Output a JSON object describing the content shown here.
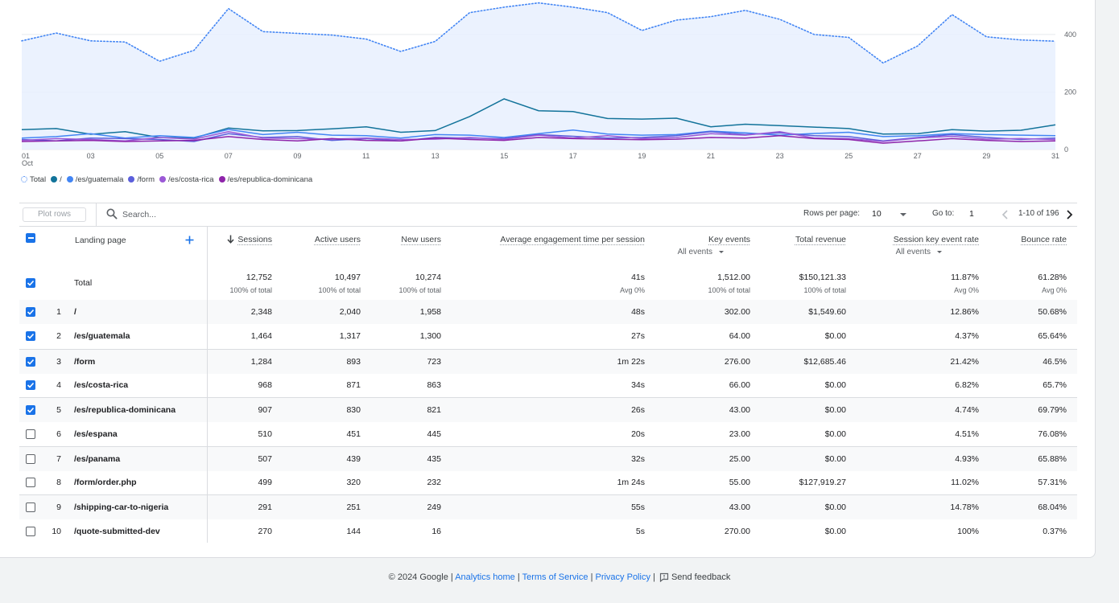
{
  "chart_data": {
    "type": "line",
    "x": [
      "01",
      "02",
      "03",
      "04",
      "05",
      "06",
      "07",
      "08",
      "09",
      "10",
      "11",
      "12",
      "13",
      "14",
      "15",
      "16",
      "17",
      "18",
      "19",
      "20",
      "21",
      "22",
      "23",
      "24",
      "25",
      "26",
      "27",
      "28",
      "29",
      "30",
      "31"
    ],
    "x_tick_labels": [
      "01",
      "03",
      "05",
      "07",
      "09",
      "11",
      "13",
      "15",
      "17",
      "19",
      "21",
      "23",
      "25",
      "27",
      "29",
      "31"
    ],
    "x_month_label": "Oct",
    "y_tick_labels": [
      "0",
      "200",
      "400"
    ],
    "ylim": [
      0,
      520
    ],
    "grid": true,
    "legend_position": "bottom-left",
    "series": [
      {
        "name": "Total",
        "color": "#4285f4",
        "style": "dotted-area",
        "values": [
          378,
          405,
          378,
          374,
          307,
          345,
          490,
          410,
          404,
          398,
          384,
          341,
          376,
          476,
          495,
          510,
          495,
          476,
          414,
          450,
          462,
          484,
          453,
          400,
          390,
          301,
          360,
          469,
          392,
          381,
          377
        ]
      },
      {
        "name": "/",
        "color": "#12739a",
        "style": "line",
        "values": [
          69,
          73,
          53,
          62,
          42,
          40,
          75,
          65,
          66,
          72,
          79,
          60,
          66,
          115,
          176,
          135,
          132,
          108,
          106,
          109,
          79,
          88,
          83,
          78,
          73,
          54,
          55,
          69,
          64,
          67,
          86
        ]
      },
      {
        "name": "/es/guatemala",
        "color": "#4285f4",
        "style": "line",
        "values": [
          40,
          45,
          55,
          40,
          48,
          42,
          70,
          52,
          60,
          50,
          48,
          40,
          52,
          50,
          42,
          55,
          68,
          54,
          50,
          52,
          64,
          58,
          50,
          56,
          60,
          45,
          48,
          55,
          52,
          50,
          48
        ]
      },
      {
        "name": "/form",
        "color": "#5b5fdb",
        "style": "line",
        "values": [
          35,
          30,
          40,
          38,
          35,
          28,
          55,
          42,
          45,
          32,
          38,
          30,
          42,
          40,
          38,
          52,
          46,
          40,
          42,
          48,
          62,
          52,
          58,
          48,
          45,
          30,
          42,
          52,
          42,
          35,
          40
        ]
      },
      {
        "name": "/es/costa-rica",
        "color": "#9b59d6",
        "style": "line",
        "values": [
          32,
          38,
          35,
          30,
          42,
          36,
          62,
          40,
          38,
          36,
          40,
          35,
          36,
          42,
          35,
          50,
          40,
          48,
          38,
          42,
          55,
          50,
          62,
          40,
          38,
          28,
          40,
          46,
          36,
          38,
          35
        ]
      },
      {
        "name": "/es/republica-dominicana",
        "color": "#8e24aa",
        "style": "line",
        "values": [
          28,
          30,
          32,
          28,
          30,
          32,
          45,
          35,
          30,
          38,
          32,
          30,
          40,
          35,
          32,
          42,
          38,
          36,
          34,
          36,
          42,
          40,
          48,
          38,
          35,
          22,
          30,
          38,
          32,
          28,
          30
        ]
      }
    ]
  },
  "legend": [
    {
      "label": "Total",
      "color": "#4285f4",
      "dotted": true
    },
    {
      "label": "/",
      "color": "#12739a"
    },
    {
      "label": "/es/guatemala",
      "color": "#4285f4"
    },
    {
      "label": "/form",
      "color": "#5b5fdb"
    },
    {
      "label": "/es/costa-rica",
      "color": "#9b59d6"
    },
    {
      "label": "/es/republica-dominicana",
      "color": "#8e24aa"
    }
  ],
  "toolbar": {
    "plot_rows": "Plot rows",
    "search_placeholder": "Search...",
    "rows_per_page_label": "Rows per page:",
    "rows_per_page_value": "10",
    "go_to_label": "Go to:",
    "go_to_value": "1",
    "range": "1-10 of 196"
  },
  "table": {
    "dimension_header": "Landing page",
    "add_dimension_icon": "plus-icon",
    "sort_icon": "arrow-down-icon",
    "columns": [
      "Sessions",
      "Active users",
      "New users",
      "Average engagement time per session",
      "Key events",
      "Total revenue",
      "Session key event rate",
      "Bounce rate"
    ],
    "key_events_filter": "All events",
    "session_rate_filter": "All events",
    "total": {
      "label": "Total",
      "values": [
        "12,752",
        "10,497",
        "10,274",
        "41s",
        "1,512.00",
        "$150,121.33",
        "11.87%",
        "61.28%"
      ],
      "subs": [
        "100% of total",
        "100% of total",
        "100% of total",
        "Avg 0%",
        "100% of total",
        "100% of total",
        "Avg 0%",
        "Avg 0%"
      ]
    },
    "rows": [
      {
        "num": "1",
        "page": "/",
        "checked": true,
        "values": [
          "2,348",
          "2,040",
          "1,958",
          "48s",
          "302.00",
          "$1,549.60",
          "12.86%",
          "50.68%"
        ]
      },
      {
        "num": "2",
        "page": "/es/guatemala",
        "checked": true,
        "values": [
          "1,464",
          "1,317",
          "1,300",
          "27s",
          "64.00",
          "$0.00",
          "4.37%",
          "65.64%"
        ]
      },
      {
        "num": "3",
        "page": "/form",
        "checked": true,
        "values": [
          "1,284",
          "893",
          "723",
          "1m 22s",
          "276.00",
          "$12,685.46",
          "21.42%",
          "46.5%"
        ]
      },
      {
        "num": "4",
        "page": "/es/costa-rica",
        "checked": true,
        "values": [
          "968",
          "871",
          "863",
          "34s",
          "66.00",
          "$0.00",
          "6.82%",
          "65.7%"
        ]
      },
      {
        "num": "5",
        "page": "/es/republica-dominicana",
        "checked": true,
        "values": [
          "907",
          "830",
          "821",
          "26s",
          "43.00",
          "$0.00",
          "4.74%",
          "69.79%"
        ]
      },
      {
        "num": "6",
        "page": "/es/espana",
        "checked": false,
        "values": [
          "510",
          "451",
          "445",
          "20s",
          "23.00",
          "$0.00",
          "4.51%",
          "76.08%"
        ]
      },
      {
        "num": "7",
        "page": "/es/panama",
        "checked": false,
        "values": [
          "507",
          "439",
          "435",
          "32s",
          "25.00",
          "$0.00",
          "4.93%",
          "65.88%"
        ]
      },
      {
        "num": "8",
        "page": "/form/order.php",
        "checked": false,
        "values": [
          "499",
          "320",
          "232",
          "1m 24s",
          "55.00",
          "$127,919.27",
          "11.02%",
          "57.31%"
        ]
      },
      {
        "num": "9",
        "page": "/shipping-car-to-nigeria",
        "checked": false,
        "values": [
          "291",
          "251",
          "249",
          "55s",
          "43.00",
          "$0.00",
          "14.78%",
          "68.04%"
        ]
      },
      {
        "num": "10",
        "page": "/quote-submitted-dev",
        "checked": false,
        "values": [
          "270",
          "144",
          "16",
          "5s",
          "270.00",
          "$0.00",
          "100%",
          "0.37%"
        ]
      }
    ]
  },
  "footer": {
    "copyright": "© 2024 Google |",
    "analytics_home": "Analytics home",
    "terms": "Terms of Service",
    "privacy": "Privacy Policy",
    "feedback": "Send feedback",
    "sep": "|"
  }
}
